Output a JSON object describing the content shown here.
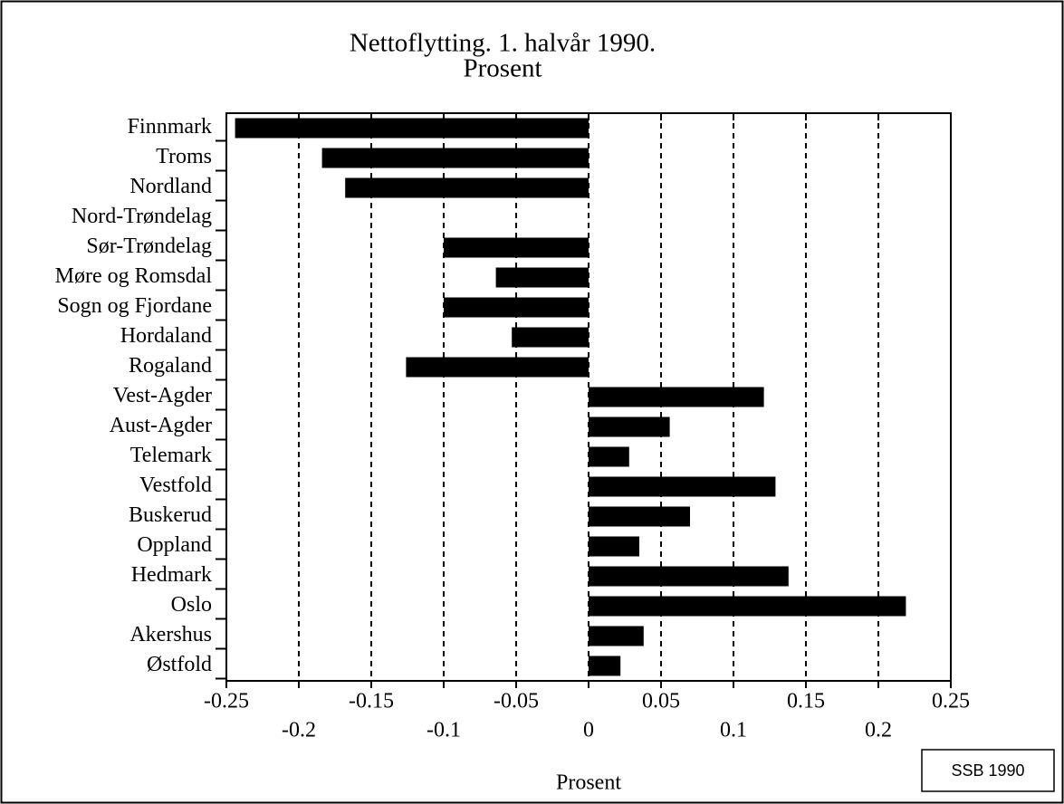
{
  "chart_data": {
    "type": "bar",
    "orientation": "horizontal",
    "title": "Nettoflytting. 1. halvår 1990.",
    "subtitle": "Prosent",
    "x_label": "Prosent",
    "annotation": "SSB 1990",
    "categories": [
      "Finnmark",
      "Troms",
      "Nordland",
      "Nord-Trøndelag",
      "Sør-Trøndelag",
      "Møre og Romsdal",
      "Sogn og Fjordane",
      "Hordaland",
      "Rogaland",
      "Vest-Agder",
      "Aust-Agder",
      "Telemark",
      "Vestfold",
      "Buskerud",
      "Oppland",
      "Hedmark",
      "Oslo",
      "Akershus",
      "Østfold"
    ],
    "values": [
      -0.244,
      -0.184,
      -0.168,
      0,
      -0.1,
      -0.064,
      -0.1,
      -0.053,
      -0.126,
      0.121,
      0.056,
      0.028,
      0.129,
      0.07,
      0.035,
      0.138,
      0.219,
      0.038,
      0.022
    ],
    "color": "#000000",
    "xlim": [
      -0.25,
      0.25
    ],
    "xticks": [
      -0.25,
      -0.2,
      -0.15,
      -0.1,
      -0.05,
      0,
      0.05,
      0.1,
      0.15,
      0.2,
      0.25
    ],
    "grid": true
  }
}
